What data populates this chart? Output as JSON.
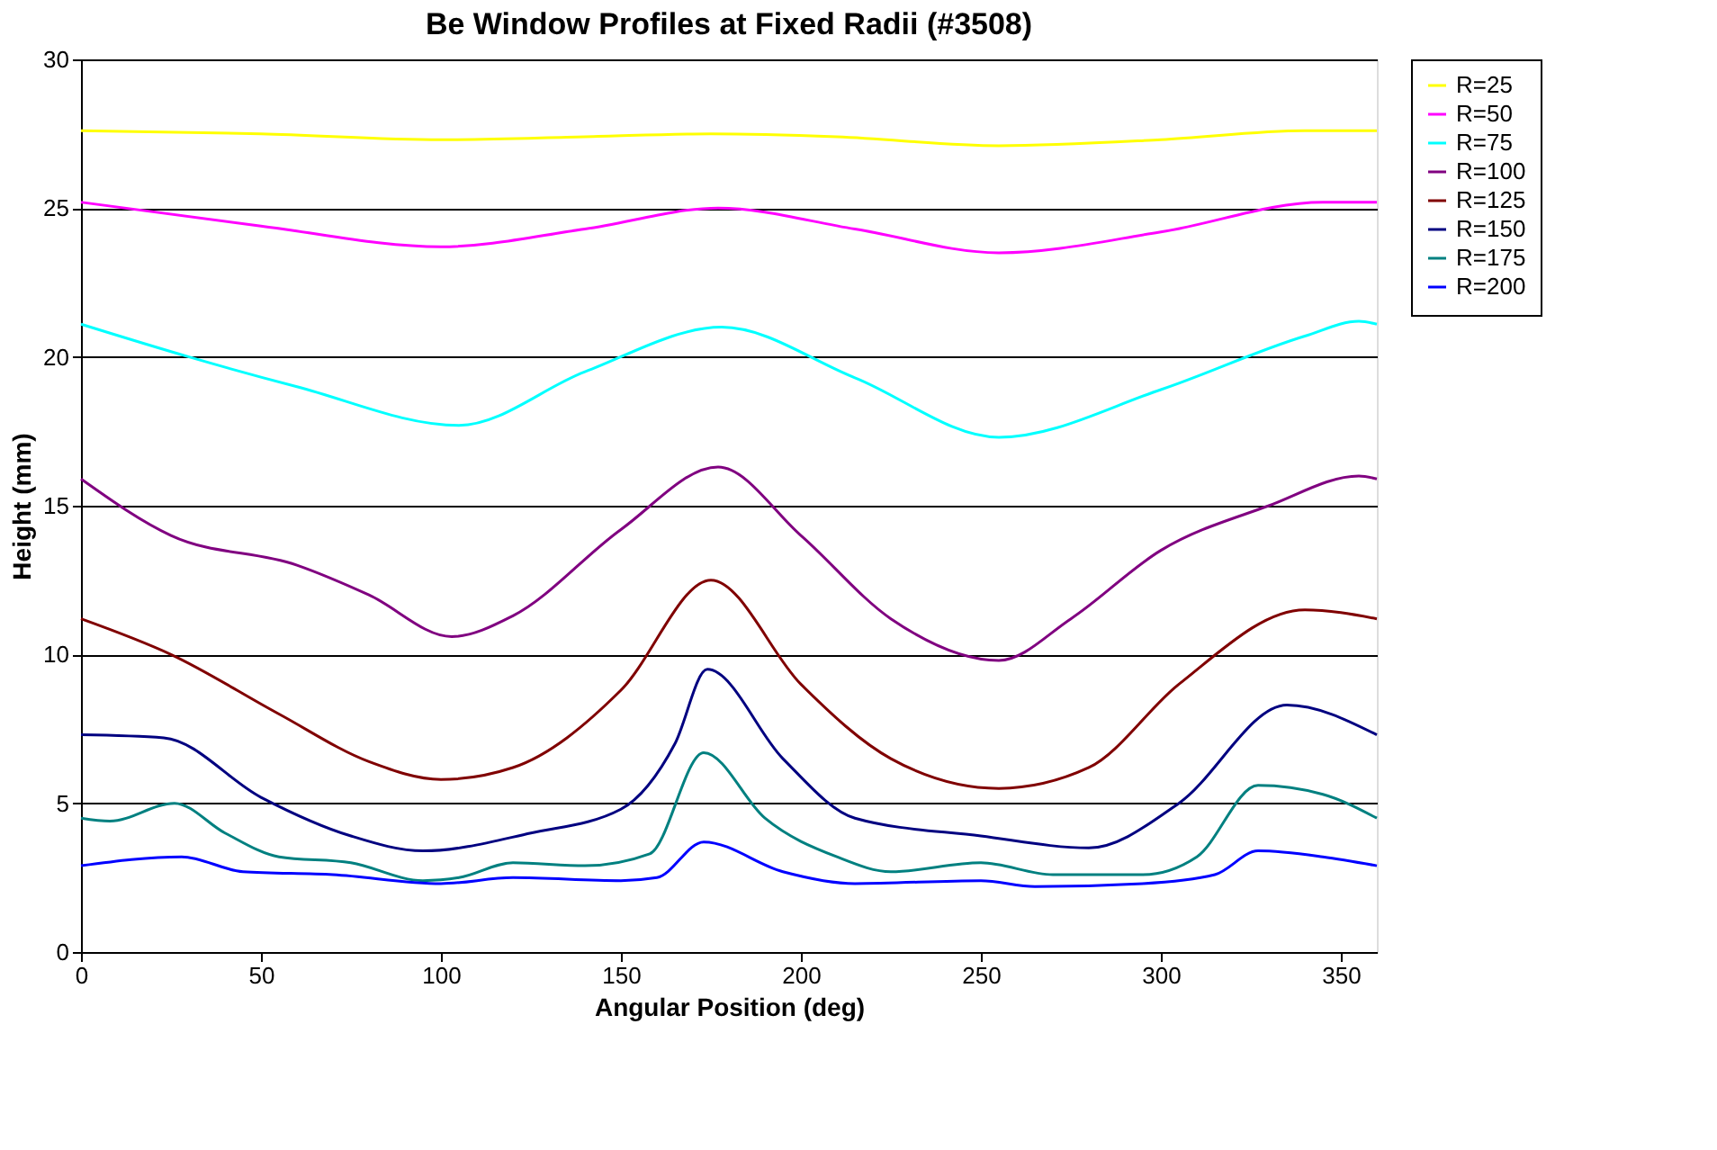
{
  "chart_data": {
    "type": "line",
    "title": "Be Window Profiles at Fixed Radii (#3508)",
    "xlabel": "Angular Position (deg)",
    "ylabel": "Height (mm)",
    "xlim": [
      0,
      360
    ],
    "xticks": [
      0,
      50,
      100,
      150,
      200,
      250,
      300,
      350
    ],
    "ylim": [
      0,
      30
    ],
    "yticks": [
      0,
      5,
      10,
      15,
      20,
      25,
      30
    ],
    "grid": "y",
    "legend": "right",
    "marker": "none",
    "line_style": "solid",
    "series": [
      {
        "name": "R=25",
        "color": "#ffff00",
        "x": [
          0,
          50,
          100,
          140,
          175,
          210,
          255,
          300,
          340,
          360
        ],
        "values": [
          27.6,
          27.5,
          27.3,
          27.4,
          27.5,
          27.4,
          27.1,
          27.3,
          27.6,
          27.6
        ]
      },
      {
        "name": "R=50",
        "color": "#ff00ff",
        "x": [
          0,
          50,
          100,
          140,
          177,
          215,
          255,
          300,
          345,
          360
        ],
        "values": [
          25.2,
          24.4,
          23.7,
          24.3,
          25.0,
          24.3,
          23.5,
          24.2,
          25.2,
          25.2
        ]
      },
      {
        "name": "R=75",
        "color": "#00ffff",
        "x": [
          0,
          30,
          60,
          105,
          140,
          178,
          215,
          255,
          300,
          340,
          355,
          360
        ],
        "values": [
          21.1,
          20.0,
          19.0,
          17.7,
          19.5,
          21.0,
          19.3,
          17.3,
          18.9,
          20.7,
          21.2,
          21.1
        ]
      },
      {
        "name": "R=100",
        "color": "#800080",
        "x": [
          0,
          25,
          60,
          80,
          103,
          120,
          150,
          177,
          200,
          225,
          255,
          275,
          300,
          330,
          355,
          360
        ],
        "values": [
          15.9,
          14.0,
          13.0,
          12.0,
          10.6,
          11.3,
          14.2,
          16.3,
          14.0,
          11.2,
          9.8,
          11.2,
          13.5,
          15.0,
          16.0,
          15.9
        ]
      },
      {
        "name": "R=125",
        "color": "#800000",
        "x": [
          0,
          25,
          55,
          80,
          100,
          120,
          150,
          175,
          200,
          225,
          255,
          280,
          305,
          340,
          360
        ],
        "values": [
          11.2,
          10.0,
          8.0,
          6.4,
          5.8,
          6.2,
          8.8,
          12.5,
          9.0,
          6.5,
          5.5,
          6.2,
          9.0,
          11.5,
          11.2
        ]
      },
      {
        "name": "R=150",
        "color": "#000080",
        "x": [
          0,
          23,
          50,
          75,
          95,
          125,
          150,
          165,
          174,
          195,
          215,
          250,
          280,
          305,
          335,
          360
        ],
        "values": [
          7.3,
          7.2,
          5.2,
          3.9,
          3.4,
          4.0,
          4.8,
          7.0,
          9.5,
          6.5,
          4.5,
          3.9,
          3.5,
          5.0,
          8.3,
          7.3
        ]
      },
      {
        "name": "R=175",
        "color": "#008080",
        "x": [
          0,
          8,
          26,
          40,
          55,
          75,
          95,
          105,
          120,
          140,
          158,
          173,
          190,
          210,
          225,
          250,
          270,
          295,
          310,
          327,
          345,
          360
        ],
        "values": [
          4.5,
          4.4,
          5.0,
          4.0,
          3.2,
          3.0,
          2.4,
          2.5,
          3.0,
          2.9,
          3.3,
          6.7,
          4.5,
          3.2,
          2.7,
          3.0,
          2.6,
          2.6,
          3.2,
          5.6,
          5.3,
          4.5
        ]
      },
      {
        "name": "R=200",
        "color": "#0000ff",
        "x": [
          0,
          28,
          45,
          70,
          100,
          120,
          150,
          160,
          173,
          195,
          215,
          250,
          265,
          295,
          315,
          327,
          345,
          360
        ],
        "values": [
          2.9,
          3.2,
          2.7,
          2.6,
          2.3,
          2.5,
          2.4,
          2.5,
          3.7,
          2.7,
          2.3,
          2.4,
          2.2,
          2.3,
          2.6,
          3.4,
          3.2,
          2.9
        ]
      }
    ]
  }
}
